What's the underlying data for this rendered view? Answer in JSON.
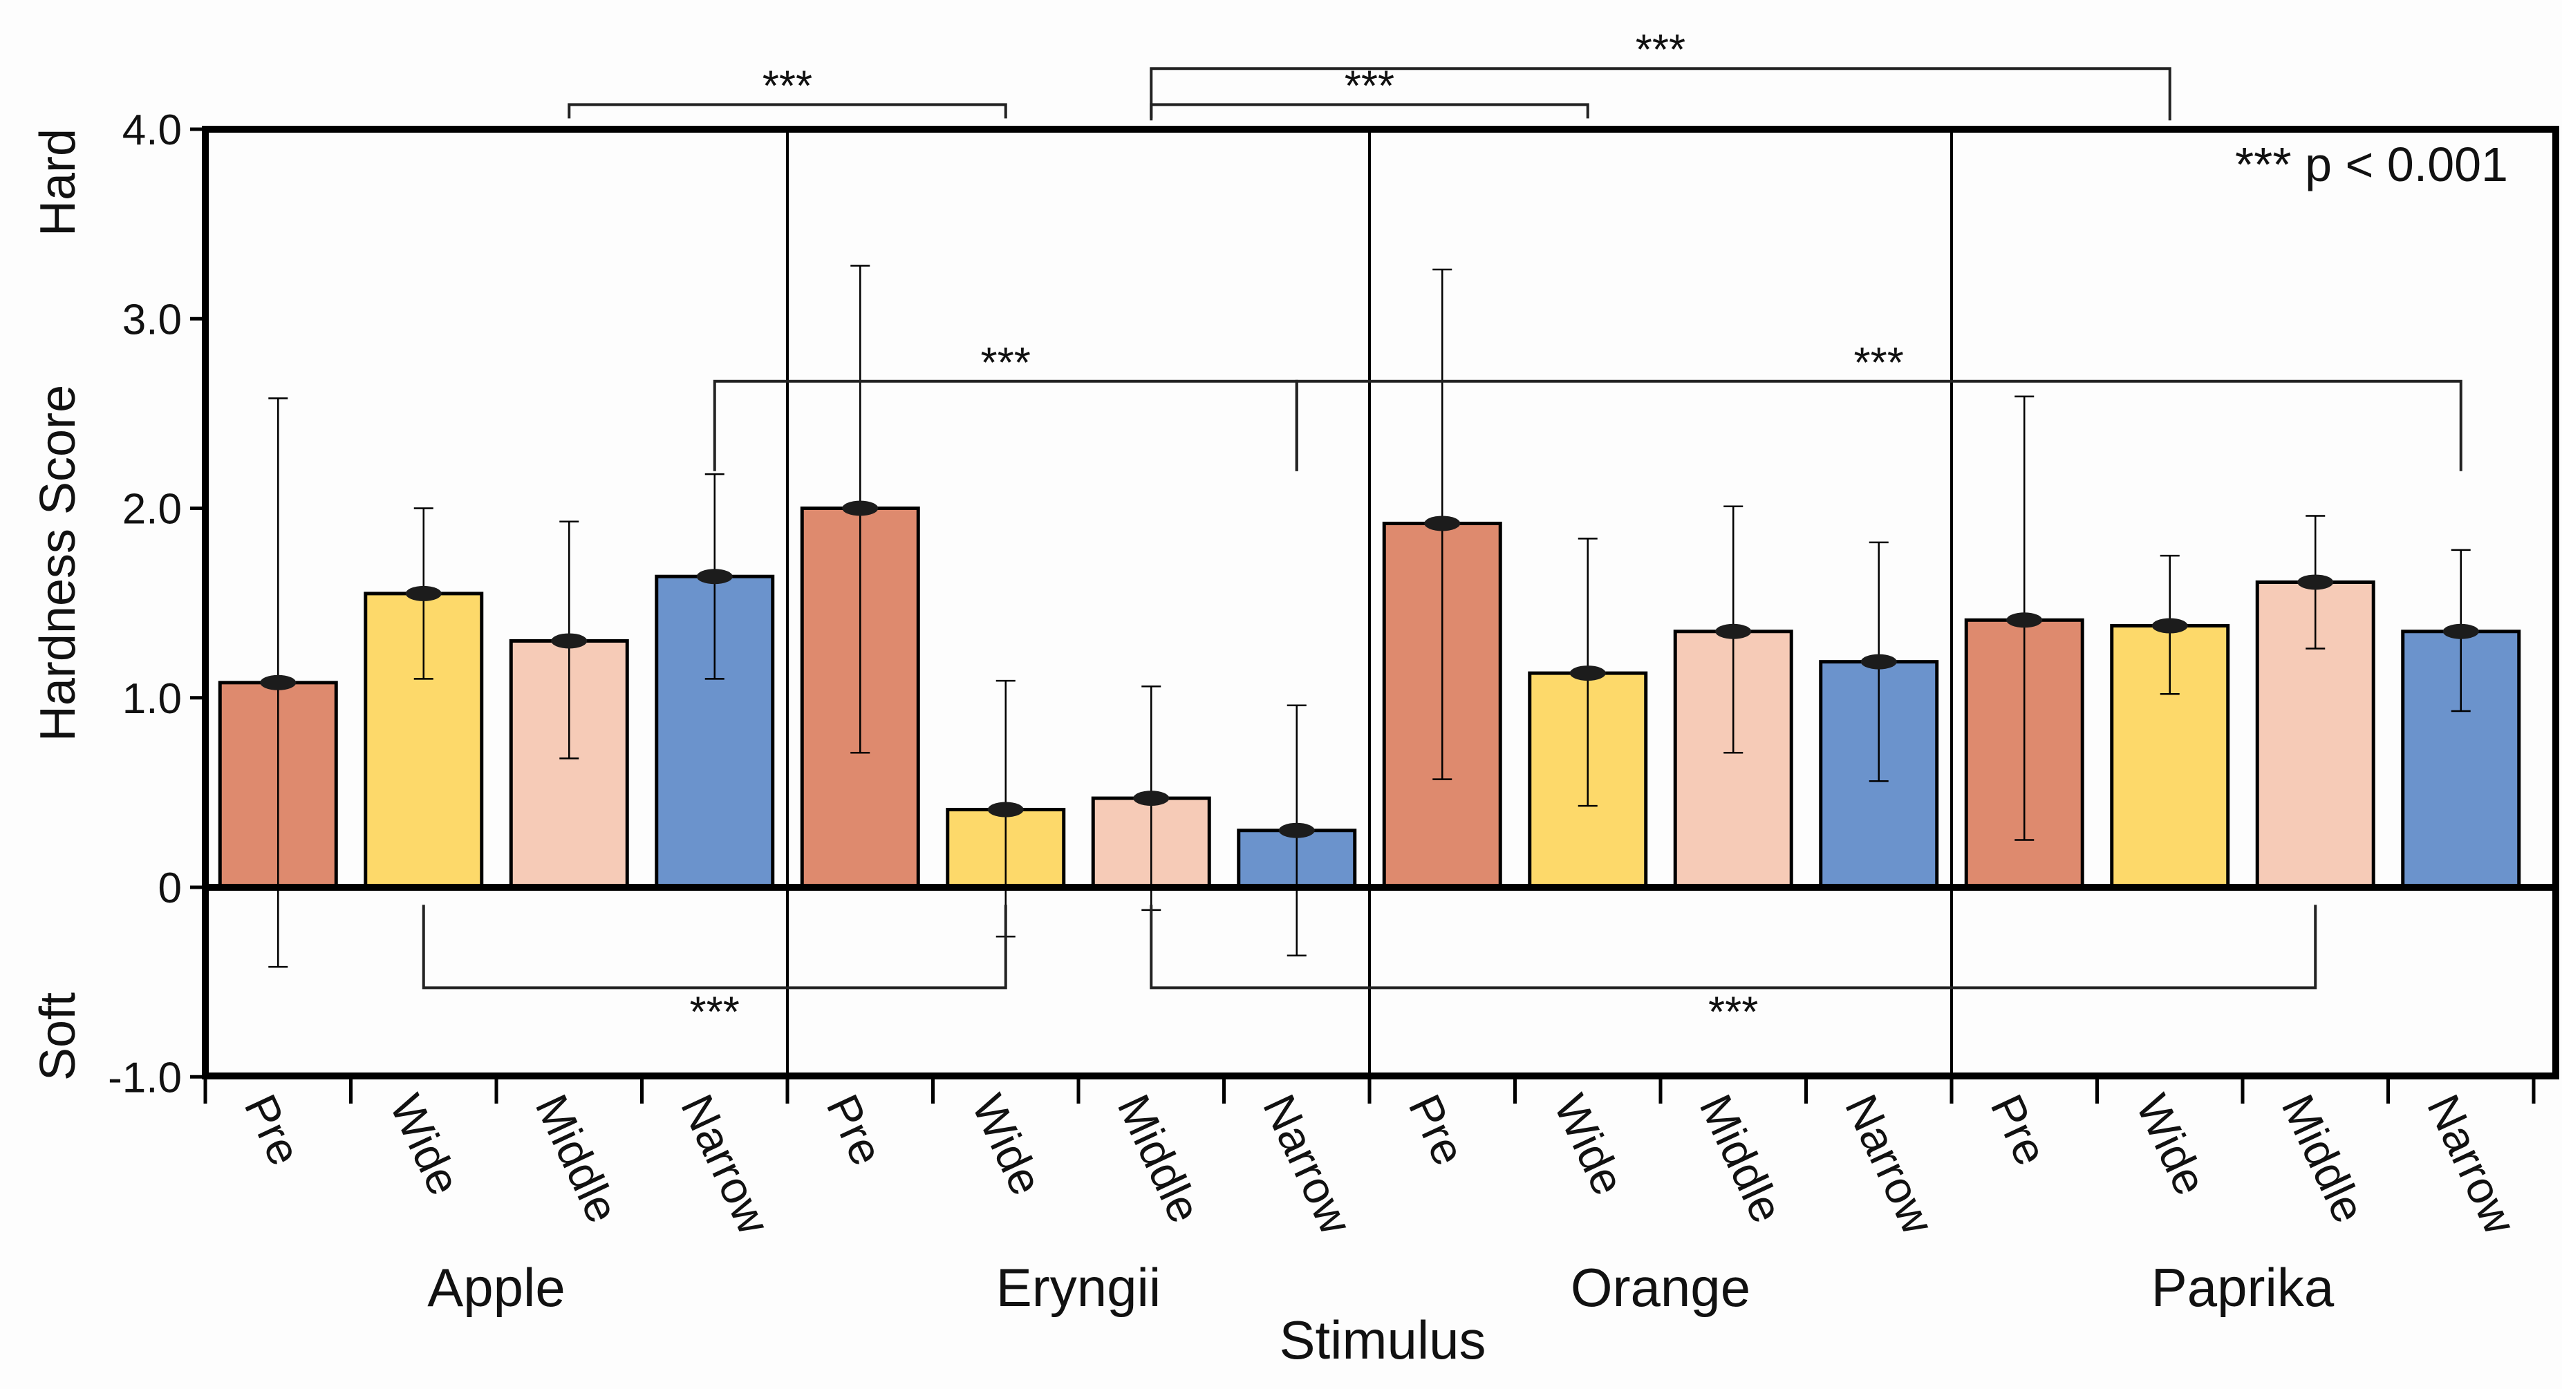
{
  "chart_data": {
    "type": "bar",
    "title": "",
    "xlabel": "Stimulus",
    "ylabel": "Hardness Score",
    "ylim": [
      -1.0,
      4.0
    ],
    "yticks": [
      -1.0,
      0,
      1.0,
      2.0,
      3.0,
      4.0
    ],
    "ytick_labels": [
      "-1.0",
      "0",
      "1.0",
      "2.0",
      "3.0",
      "4.0"
    ],
    "y_side_labels": {
      "top": "Hard",
      "bottom": "Soft"
    },
    "groups": [
      "Apple",
      "Eryngii",
      "Orange",
      "Paprika"
    ],
    "conditions": [
      "Pre",
      "Wide",
      "Middle",
      "Narrow"
    ],
    "colors": {
      "Pre": "#de8a6e",
      "Wide": "#fdd96a",
      "Middle": "#f6cbb7",
      "Narrow": "#6b93cc"
    },
    "series": [
      {
        "name": "Pre",
        "values": [
          1.08,
          2.0,
          1.92,
          1.41
        ],
        "err_low": [
          -0.42,
          0.71,
          0.57,
          0.25
        ],
        "err_high": [
          2.58,
          3.28,
          3.26,
          2.59
        ]
      },
      {
        "name": "Wide",
        "values": [
          1.55,
          0.41,
          1.13,
          1.38
        ],
        "err_low": [
          1.1,
          -0.26,
          0.43,
          1.02
        ],
        "err_high": [
          2.0,
          1.09,
          1.84,
          1.75
        ]
      },
      {
        "name": "Middle",
        "values": [
          1.3,
          0.47,
          1.35,
          1.61
        ],
        "err_low": [
          0.68,
          -0.12,
          0.71,
          1.26
        ],
        "err_high": [
          1.93,
          1.06,
          2.01,
          1.96
        ]
      },
      {
        "name": "Narrow",
        "values": [
          1.64,
          0.3,
          1.19,
          1.35
        ],
        "err_low": [
          1.1,
          -0.36,
          0.56,
          0.93
        ],
        "err_high": [
          2.18,
          0.96,
          1.82,
          1.78
        ]
      }
    ],
    "significance_note": "*** p < 0.001",
    "significance": [
      {
        "label": "***",
        "from": "Apple-Middle",
        "to": "Eryngii-Wide",
        "level": 4.13,
        "dir": "down"
      },
      {
        "label": "***",
        "from": "Eryngii-Middle",
        "to": "Orange-Wide",
        "level": 4.13,
        "dir": "down"
      },
      {
        "label": "***",
        "from": "Eryngii-Middle",
        "to": "Paprika-Wide",
        "level": 4.32,
        "dir": "down"
      },
      {
        "label": "***",
        "from": "Apple-Narrow",
        "to": "Eryngii-Narrow",
        "level": 2.67,
        "dir": "down"
      },
      {
        "label": "***",
        "from": "Eryngii-Narrow",
        "to": "Paprika-Narrow",
        "level": 2.67,
        "dir": "down"
      },
      {
        "label": "***",
        "from": "Apple-Wide",
        "to": "Eryngii-Wide",
        "level": -0.53,
        "dir": "up"
      },
      {
        "label": "***",
        "from": "Eryngii-Middle",
        "to": "Paprika-Middle",
        "level": -0.53,
        "dir": "up"
      }
    ]
  }
}
